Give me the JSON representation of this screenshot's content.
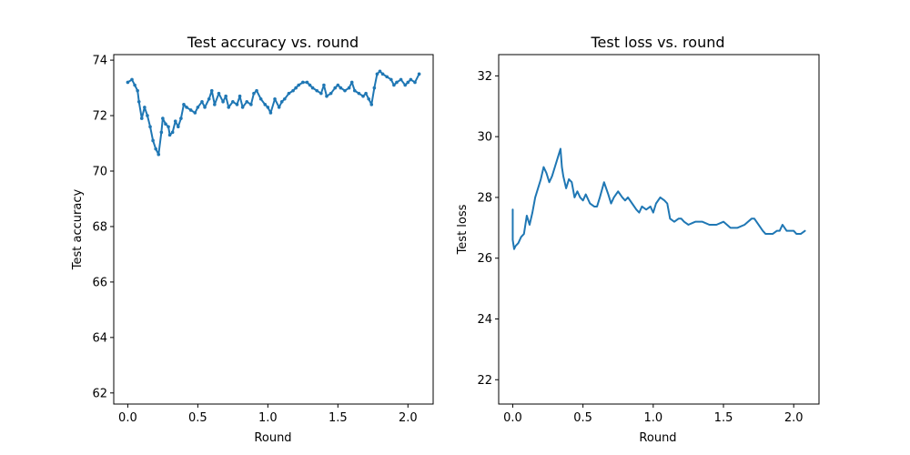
{
  "chart_data": [
    {
      "id": "accuracy",
      "type": "line",
      "title": "Test accuracy vs. round",
      "xlabel": "Round",
      "ylabel": "Test accuracy",
      "xlim": [
        -0.1,
        2.18
      ],
      "ylim": [
        61.6,
        74.2
      ],
      "xticks": [
        0.0,
        0.5,
        1.0,
        1.5,
        2.0
      ],
      "xtick_labels": [
        "0.0",
        "0.5",
        "1.0",
        "1.5",
        "2.0"
      ],
      "yticks": [
        62,
        64,
        66,
        68,
        70,
        72,
        74
      ],
      "ytick_labels": [
        "62",
        "64",
        "66",
        "68",
        "70",
        "72",
        "74"
      ],
      "grid": false,
      "color": "#1f77b4",
      "markers": true,
      "series": [
        {
          "x": [
            0.0,
            0.03,
            0.05,
            0.07,
            0.08,
            0.1,
            0.12,
            0.14,
            0.16,
            0.18,
            0.2,
            0.22,
            0.24,
            0.25,
            0.27,
            0.29,
            0.3,
            0.32,
            0.34,
            0.36,
            0.38,
            0.4,
            0.42,
            0.45,
            0.48,
            0.5,
            0.53,
            0.55,
            0.58,
            0.6,
            0.62,
            0.65,
            0.68,
            0.7,
            0.72,
            0.75,
            0.78,
            0.8,
            0.82,
            0.85,
            0.88,
            0.9,
            0.92,
            0.95,
            0.98,
            1.0,
            1.02,
            1.05,
            1.08,
            1.1,
            1.12,
            1.15,
            1.18,
            1.2,
            1.22,
            1.25,
            1.28,
            1.3,
            1.32,
            1.35,
            1.38,
            1.4,
            1.42,
            1.45,
            1.48,
            1.5,
            1.52,
            1.55,
            1.58,
            1.6,
            1.62,
            1.65,
            1.68,
            1.7,
            1.72,
            1.74,
            1.76,
            1.78,
            1.8,
            1.82,
            1.85,
            1.88,
            1.9,
            1.92,
            1.95,
            1.98,
            2.0,
            2.02,
            2.05,
            2.08
          ],
          "y": [
            73.2,
            73.3,
            73.1,
            72.9,
            72.5,
            71.9,
            72.3,
            72.0,
            71.6,
            71.1,
            70.8,
            70.6,
            71.4,
            71.9,
            71.7,
            71.6,
            71.3,
            71.4,
            71.8,
            71.6,
            71.9,
            72.4,
            72.3,
            72.2,
            72.1,
            72.3,
            72.5,
            72.3,
            72.6,
            72.9,
            72.4,
            72.8,
            72.5,
            72.7,
            72.3,
            72.5,
            72.4,
            72.7,
            72.3,
            72.5,
            72.4,
            72.8,
            72.9,
            72.6,
            72.4,
            72.3,
            72.1,
            72.6,
            72.3,
            72.5,
            72.6,
            72.8,
            72.9,
            73.0,
            73.1,
            73.2,
            73.2,
            73.1,
            73.0,
            72.9,
            72.8,
            73.1,
            72.7,
            72.8,
            73.0,
            73.1,
            73.0,
            72.9,
            73.0,
            73.2,
            72.9,
            72.8,
            72.7,
            72.8,
            72.6,
            72.4,
            73.0,
            73.5,
            73.6,
            73.5,
            73.4,
            73.3,
            73.1,
            73.2,
            73.3,
            73.1,
            73.2,
            73.3,
            73.2,
            73.5
          ]
        }
      ]
    },
    {
      "id": "loss",
      "type": "line",
      "title": "Test loss vs. round",
      "xlabel": "Round",
      "ylabel": "Test loss",
      "xlim": [
        -0.1,
        2.18
      ],
      "ylim": [
        21.2,
        32.7
      ],
      "xticks": [
        0.0,
        0.5,
        1.0,
        1.5,
        2.0
      ],
      "xtick_labels": [
        "0.0",
        "0.5",
        "1.0",
        "1.5",
        "2.0"
      ],
      "yticks": [
        22,
        24,
        26,
        28,
        30,
        32
      ],
      "ytick_labels": [
        "22",
        "24",
        "26",
        "28",
        "30",
        "32"
      ],
      "grid": false,
      "color": "#1f77b4",
      "markers": false,
      "series": [
        {
          "x": [
            0.0,
            0.0,
            0.01,
            0.02,
            0.04,
            0.06,
            0.08,
            0.1,
            0.12,
            0.14,
            0.16,
            0.18,
            0.2,
            0.22,
            0.24,
            0.26,
            0.28,
            0.3,
            0.32,
            0.34,
            0.35,
            0.36,
            0.38,
            0.4,
            0.42,
            0.44,
            0.46,
            0.48,
            0.5,
            0.52,
            0.55,
            0.58,
            0.6,
            0.62,
            0.65,
            0.68,
            0.7,
            0.72,
            0.75,
            0.78,
            0.8,
            0.82,
            0.85,
            0.88,
            0.9,
            0.92,
            0.95,
            0.98,
            1.0,
            1.02,
            1.05,
            1.08,
            1.1,
            1.12,
            1.15,
            1.18,
            1.2,
            1.22,
            1.25,
            1.3,
            1.35,
            1.4,
            1.45,
            1.5,
            1.55,
            1.6,
            1.65,
            1.7,
            1.72,
            1.75,
            1.78,
            1.8,
            1.82,
            1.85,
            1.88,
            1.9,
            1.92,
            1.95,
            1.98,
            2.0,
            2.02,
            2.05,
            2.08
          ],
          "y": [
            27.6,
            26.6,
            26.3,
            26.4,
            26.5,
            26.7,
            26.8,
            27.4,
            27.1,
            27.5,
            28.0,
            28.3,
            28.6,
            29.0,
            28.8,
            28.5,
            28.7,
            29.0,
            29.3,
            29.6,
            29.0,
            28.7,
            28.3,
            28.6,
            28.5,
            28.0,
            28.2,
            28.0,
            27.9,
            28.1,
            27.8,
            27.7,
            27.7,
            28.0,
            28.5,
            28.1,
            27.8,
            28.0,
            28.2,
            28.0,
            27.9,
            28.0,
            27.8,
            27.6,
            27.5,
            27.7,
            27.6,
            27.7,
            27.5,
            27.8,
            28.0,
            27.9,
            27.8,
            27.3,
            27.2,
            27.3,
            27.3,
            27.2,
            27.1,
            27.2,
            27.2,
            27.1,
            27.1,
            27.2,
            27.0,
            27.0,
            27.1,
            27.3,
            27.3,
            27.1,
            26.9,
            26.8,
            26.8,
            26.8,
            26.9,
            26.9,
            27.1,
            26.9,
            26.9,
            26.9,
            26.8,
            26.8,
            26.9
          ]
        }
      ]
    }
  ]
}
